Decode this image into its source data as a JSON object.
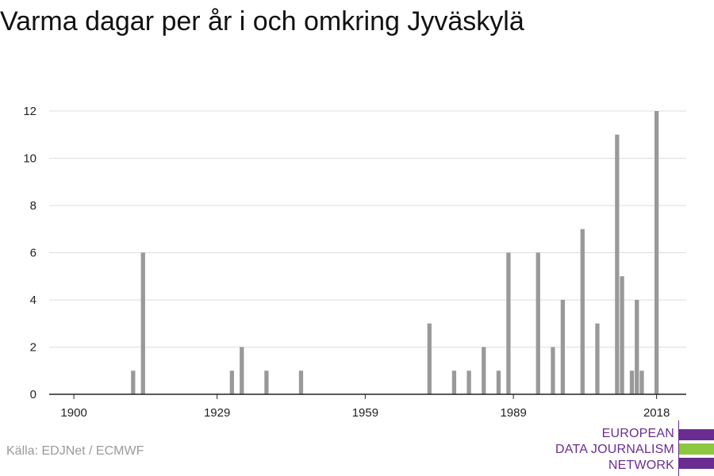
{
  "title": "Varma dagar per år i och omkring Jyväskylä",
  "source": "Källa: EDJNet / ECMWF",
  "logo": {
    "lines": [
      "EUROPEAN",
      "DATA JOURNALISM",
      "NETWORK"
    ],
    "colors": {
      "purple": "#6a2c91",
      "green": "#8dc63f"
    }
  },
  "chart_data": {
    "type": "bar",
    "title": "Varma dagar per år i och omkring Jyväskylä",
    "xlabel": "",
    "ylabel": "",
    "bar_color": "#999999",
    "grid": true,
    "xlim": [
      1895,
      2024
    ],
    "ylim": [
      0,
      12
    ],
    "x_ticks": [
      1900,
      1929,
      1959,
      1989,
      2018
    ],
    "y_ticks": [
      0,
      2,
      4,
      6,
      8,
      10,
      12
    ],
    "x": [
      1912,
      1914,
      1932,
      1934,
      1939,
      1946,
      1972,
      1977,
      1980,
      1983,
      1986,
      1988,
      1994,
      1997,
      1999,
      2003,
      2006,
      2010,
      2011,
      2013,
      2014,
      2015,
      2018
    ],
    "values": [
      1,
      6,
      1,
      2,
      1,
      1,
      3,
      1,
      1,
      2,
      1,
      6,
      6,
      2,
      4,
      7,
      3,
      11,
      5,
      1,
      4,
      1,
      12
    ]
  }
}
